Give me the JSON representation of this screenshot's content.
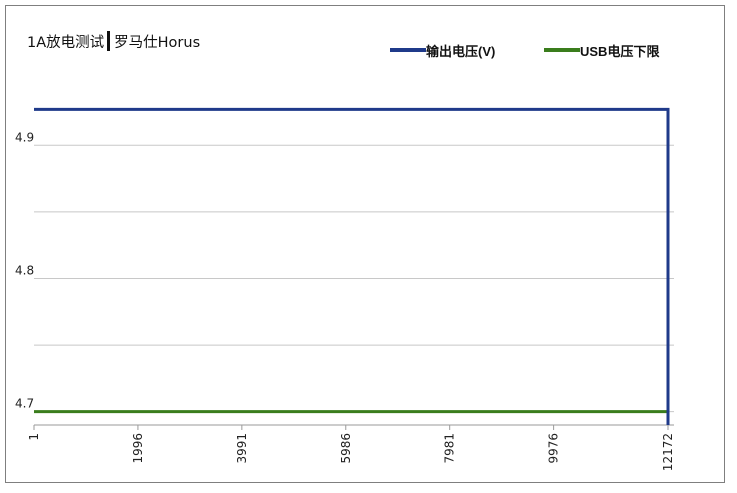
{
  "title": "1A放电测试",
  "subtitle": "罗马仕Horus",
  "chart_data": {
    "type": "line",
    "x_ticks": [
      "1",
      "1996",
      "3991",
      "5986",
      "7981",
      "9976",
      "12172"
    ],
    "y_ticks": [
      "4.9",
      "4.8",
      "4.7"
    ],
    "ylim": [
      4.69,
      4.94
    ],
    "xlim": [
      1,
      12172
    ],
    "grid": true,
    "legend_position": "top-right",
    "series": [
      {
        "name": "输出电压(V)",
        "color": "#1f3a8a",
        "x": [
          1,
          12172,
          12172
        ],
        "y": [
          4.927,
          4.927,
          4.69
        ]
      },
      {
        "name": "USB电压下限",
        "color": "#3a7d1c",
        "x": [
          1,
          12172
        ],
        "y": [
          4.7,
          4.7
        ]
      }
    ]
  }
}
